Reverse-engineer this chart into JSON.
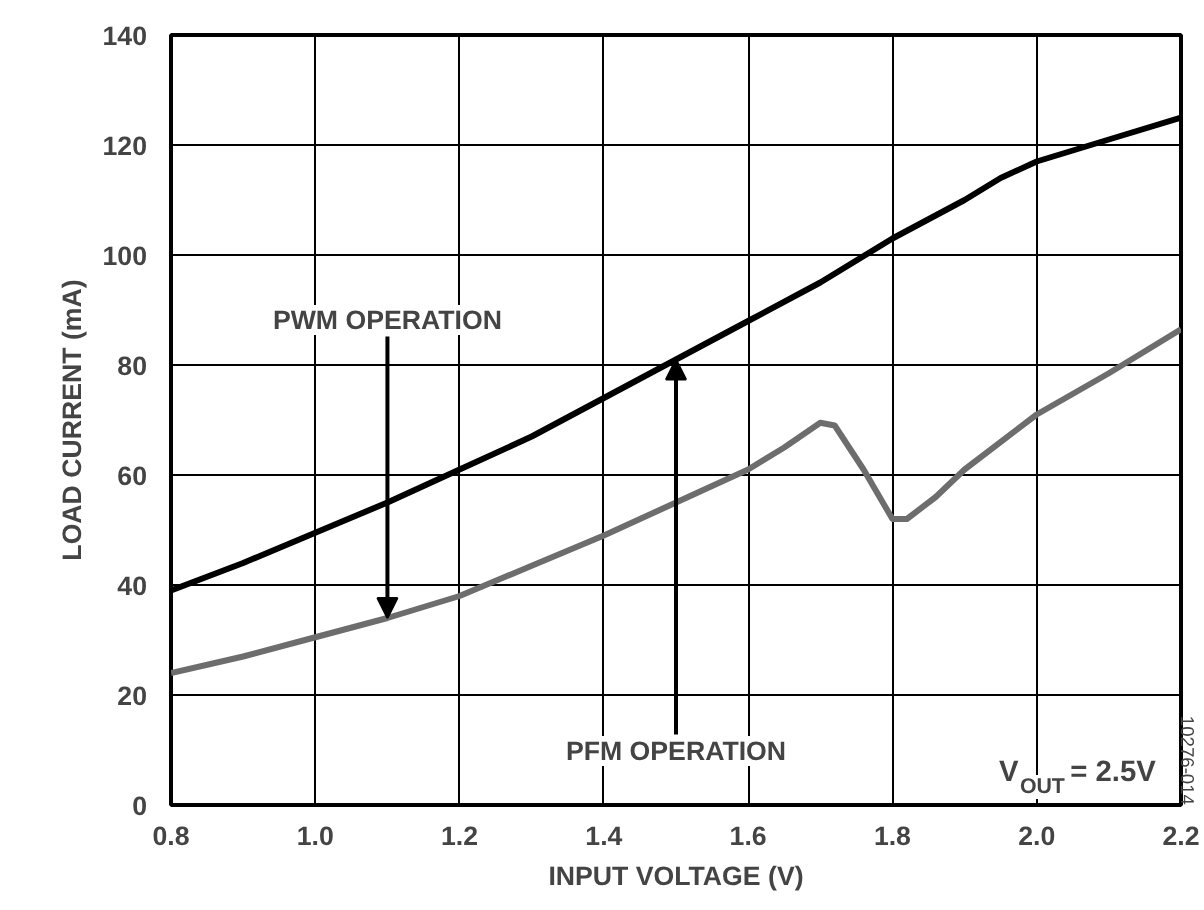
{
  "chart_data": {
    "type": "line",
    "xlabel": "INPUT VOLTAGE (V)",
    "ylabel": "LOAD CURRENT (mA)",
    "xlim": [
      0.8,
      2.2
    ],
    "xticks": [
      {
        "value": 0.8,
        "label": "0.8"
      },
      {
        "value": 1.0,
        "label": "1.0"
      },
      {
        "value": 1.2,
        "label": "1.2"
      },
      {
        "value": 1.4,
        "label": "1.4"
      },
      {
        "value": 1.6,
        "label": "1.6"
      },
      {
        "value": 1.8,
        "label": "1.8"
      },
      {
        "value": 2.0,
        "label": "2.0"
      },
      {
        "value": 2.2,
        "label": "2.2"
      }
    ],
    "ylim": [
      0,
      140
    ],
    "yticks": [
      0,
      20,
      40,
      60,
      80,
      100,
      120,
      140
    ],
    "grid": true,
    "line_style": "solid",
    "series": [
      {
        "color": "#000000",
        "x": [
          0.8,
          0.9,
          1.0,
          1.1,
          1.2,
          1.3,
          1.4,
          1.5,
          1.6,
          1.7,
          1.8,
          1.9,
          1.95,
          2.0,
          2.1,
          2.2
        ],
        "values": [
          39,
          44,
          49.5,
          55,
          61,
          67,
          74,
          81,
          88,
          95,
          103,
          110,
          114,
          117,
          121,
          125
        ]
      },
      {
        "color": "#6d6d6d",
        "x": [
          0.8,
          0.9,
          1.0,
          1.1,
          1.2,
          1.3,
          1.4,
          1.5,
          1.6,
          1.65,
          1.7,
          1.72,
          1.76,
          1.8,
          1.82,
          1.86,
          1.9,
          2.0,
          2.1,
          2.2
        ],
        "values": [
          24,
          27,
          30.5,
          34,
          38,
          43.5,
          49,
          55,
          61,
          65,
          69.5,
          69,
          61,
          52,
          52,
          56,
          61,
          71,
          78.5,
          86.5
        ]
      }
    ],
    "annotations": [
      {
        "text": "PWM OPERATION",
        "x": 1.1,
        "y": 34
      },
      {
        "text": "PFM OPERATION",
        "x": 1.5,
        "y": 81
      },
      "V$_{OUT}$ = 2.5V",
      "10276-014"
    ]
  }
}
